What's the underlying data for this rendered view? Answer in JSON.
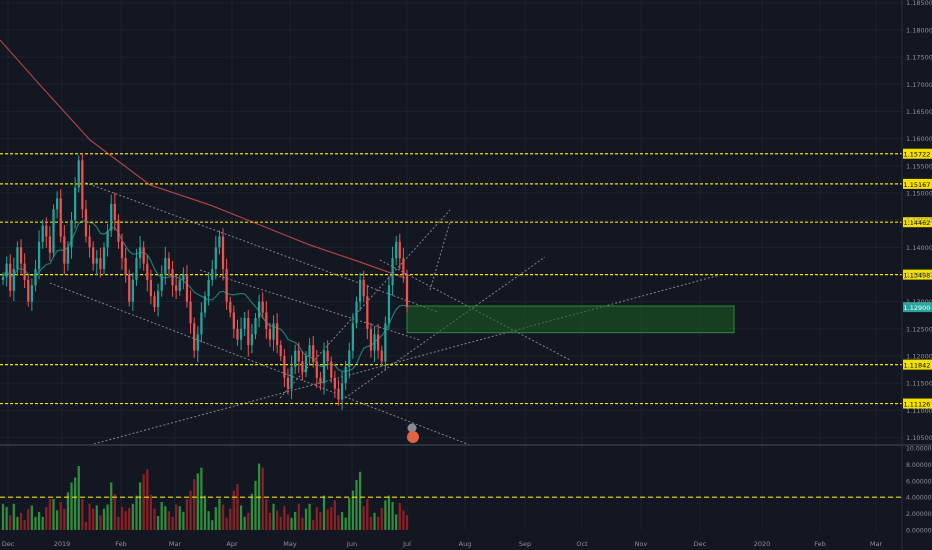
{
  "chart_data": [
    {
      "type": "candlestick",
      "title": "",
      "colors": {
        "background": "#131722",
        "up": "#26a69a",
        "down": "#ef5350",
        "level_line": "#f5e000",
        "zone": "#1b5e20",
        "ma_red": "#b0413e",
        "ma_teal": "#1e7b73",
        "trendline": "#9aa0aa",
        "axis_text": "#8a8f98"
      },
      "y_axis_ticks": [
        "1.18500",
        "1.18000",
        "1.17500",
        "1.17000",
        "1.16500",
        "1.16000",
        "1.15500",
        "1.15000",
        "1.14500",
        "1.14000",
        "1.13500",
        "1.13000",
        "1.12500",
        "1.12000",
        "1.11500",
        "1.11000",
        "1.10500"
      ],
      "ylim": [
        1.104,
        1.1855
      ],
      "x_axis_ticks": [
        "Dec",
        "2019",
        "Feb",
        "Mar",
        "Apr",
        "May",
        "Jun",
        "Jul",
        "Aug",
        "Sep",
        "Oct",
        "Nov",
        "Dec",
        "2020",
        "Feb",
        "Mar"
      ],
      "horizontal_levels": [
        1.15722,
        1.15167,
        1.14462,
        1.13498,
        1.11842,
        1.11126
      ],
      "horizontal_level_labels": [
        "1.15722",
        "1.15167",
        "1.14462",
        "1.13498",
        "1.11842",
        "1.11126"
      ],
      "current_price_label": "1.12900",
      "zone": {
        "top": 1.1292,
        "bottom": 1.1243,
        "from": "Jul",
        "to": "Dec"
      },
      "close_series": [
        1.1345,
        1.137,
        1.132,
        1.136,
        1.14,
        1.137,
        1.134,
        1.13,
        1.133,
        1.136,
        1.141,
        1.144,
        1.142,
        1.139,
        1.147,
        1.149,
        1.142,
        1.137,
        1.14,
        1.145,
        1.151,
        1.156,
        1.147,
        1.142,
        1.14,
        1.137,
        1.138,
        1.136,
        1.14,
        1.143,
        1.148,
        1.145,
        1.141,
        1.138,
        1.135,
        1.13,
        1.134,
        1.138,
        1.14,
        1.137,
        1.134,
        1.131,
        1.129,
        1.132,
        1.135,
        1.138,
        1.136,
        1.133,
        1.132,
        1.134,
        1.135,
        1.13,
        1.126,
        1.121,
        1.124,
        1.128,
        1.131,
        1.134,
        1.136,
        1.14,
        1.142,
        1.136,
        1.13,
        1.128,
        1.125,
        1.123,
        1.125,
        1.127,
        1.122,
        1.124,
        1.127,
        1.13,
        1.128,
        1.125,
        1.123,
        1.126,
        1.122,
        1.12,
        1.116,
        1.114,
        1.118,
        1.121,
        1.119,
        1.117,
        1.12,
        1.122,
        1.119,
        1.116,
        1.115,
        1.121,
        1.119,
        1.116,
        1.114,
        1.112,
        1.115,
        1.118,
        1.121,
        1.126,
        1.13,
        1.134,
        1.131,
        1.125,
        1.121,
        1.124,
        1.121,
        1.119,
        1.126,
        1.133,
        1.138,
        1.141,
        1.138,
        1.135,
        1.129
      ],
      "volume_y_ticks": [
        "10.00000",
        "8.00000",
        "6.00000",
        "4.00000",
        "2.00000",
        "0.00000"
      ],
      "volume_ylim": [
        0,
        10
      ],
      "volume_reference_level": 4,
      "volume_series": [
        3.2,
        2.8,
        1.8,
        3.2,
        1.6,
        2.1,
        1.2,
        2.6,
        3,
        1.6,
        2.2,
        1.6,
        2.8,
        3.8,
        3.8,
        2.4,
        3.4,
        2.6,
        4.6,
        5.8,
        6.4,
        7.8,
        3.8,
        1,
        3.2,
        2.6,
        3,
        1.8,
        2.6,
        3.1,
        5.8,
        4.4,
        1.6,
        2.8,
        2.3,
        2.7,
        3.2,
        4.2,
        5.8,
        6.8,
        7.4,
        4.3,
        2.6,
        1.7,
        3.4,
        2.9,
        2.3,
        1.6,
        3.1,
        2.9,
        2.2,
        3.8,
        4.8,
        6.2,
        6.9,
        7.6,
        4.2,
        2.3,
        1.2,
        2.8,
        3.8,
        3.1,
        1.5,
        2.6,
        4.8,
        5.6,
        3,
        1.6,
        2.1,
        4.4,
        6,
        8.1,
        7.6,
        3.8,
        2.1,
        3.2,
        2.4,
        1.6,
        2.9,
        1.9,
        1.5,
        2.2,
        3.2,
        1.5,
        2.6,
        3.2,
        1.2,
        2.8,
        2.2,
        4.2,
        2.5,
        2.8,
        3.6,
        1.8,
        2.2,
        1.5,
        3.9,
        4.8,
        6.1,
        7.1,
        2.9,
        3.8,
        1.6,
        2.1,
        1.6,
        2.7,
        3.6,
        4.2,
        3.4,
        1.9,
        3.3,
        2.4,
        1.8
      ]
    }
  ]
}
